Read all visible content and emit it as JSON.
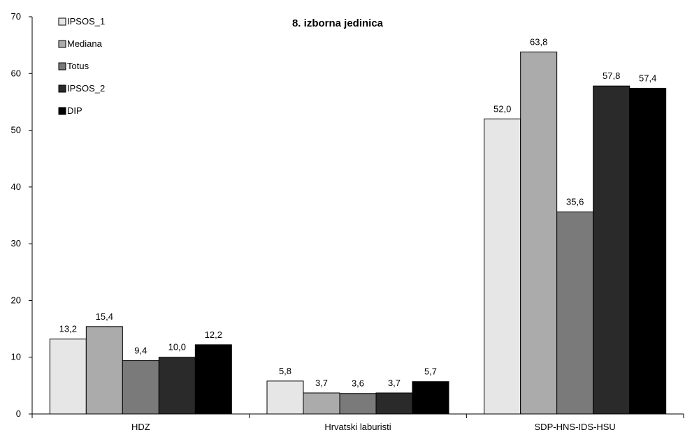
{
  "chart_data": {
    "type": "bar",
    "title": "8. izborna jedinica",
    "xlabel": "",
    "ylabel": "",
    "ylim": [
      0,
      70
    ],
    "yticks": [
      0,
      10,
      20,
      30,
      40,
      50,
      60,
      70
    ],
    "grid": false,
    "legend_position": "top-left",
    "categories": [
      "HDZ",
      "Hrvatski laburisti",
      "SDP-HNS-IDS-HSU"
    ],
    "series": [
      {
        "name": "IPSOS_1",
        "color": "#e6e6e6",
        "values": [
          13.2,
          5.8,
          52.0
        ],
        "labels": [
          "13,2",
          "5,8",
          "52,0"
        ]
      },
      {
        "name": "Mediana",
        "color": "#ababab",
        "values": [
          15.4,
          3.7,
          63.8
        ],
        "labels": [
          "15,4",
          "3,7",
          "63,8"
        ]
      },
      {
        "name": "Totus",
        "color": "#7a7a7a",
        "values": [
          9.4,
          3.6,
          35.6
        ],
        "labels": [
          "9,4",
          "3,6",
          "35,6"
        ]
      },
      {
        "name": "IPSOS_2",
        "color": "#2a2a2a",
        "values": [
          10.0,
          3.7,
          57.8
        ],
        "labels": [
          "10,0",
          "3,7",
          "57,8"
        ]
      },
      {
        "name": "DIP",
        "color": "#000000",
        "values": [
          12.2,
          5.7,
          57.4
        ],
        "labels": [
          "12,2",
          "5,7",
          "57,4"
        ]
      }
    ]
  }
}
